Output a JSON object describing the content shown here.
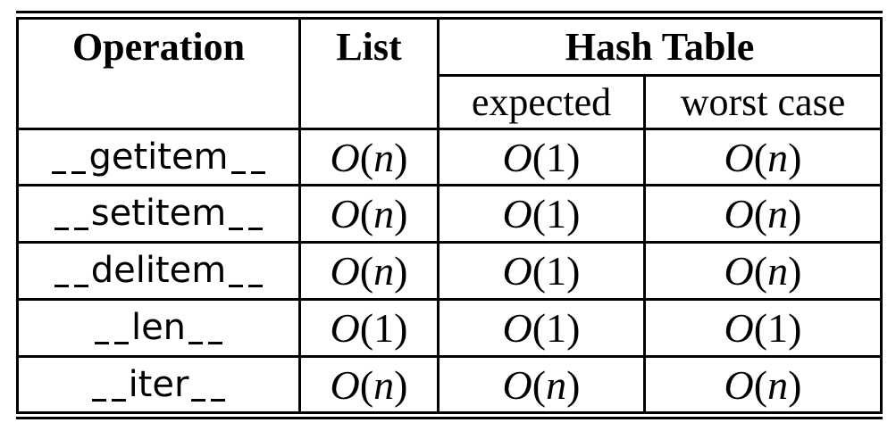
{
  "table": {
    "headers": {
      "operation": "Operation",
      "list": "List",
      "hash_table": "Hash Table",
      "expected": "expected",
      "worst_case": "worst case"
    },
    "rows": [
      {
        "op": "getitem",
        "list": "n",
        "expected": "1",
        "worst": "n"
      },
      {
        "op": "setitem",
        "list": "n",
        "expected": "1",
        "worst": "n"
      },
      {
        "op": "delitem",
        "list": "n",
        "expected": "1",
        "worst": "n"
      },
      {
        "op": "len",
        "list": "1",
        "expected": "1",
        "worst": "1"
      },
      {
        "op": "iter",
        "list": "n",
        "expected": "n",
        "worst": "n"
      }
    ]
  }
}
